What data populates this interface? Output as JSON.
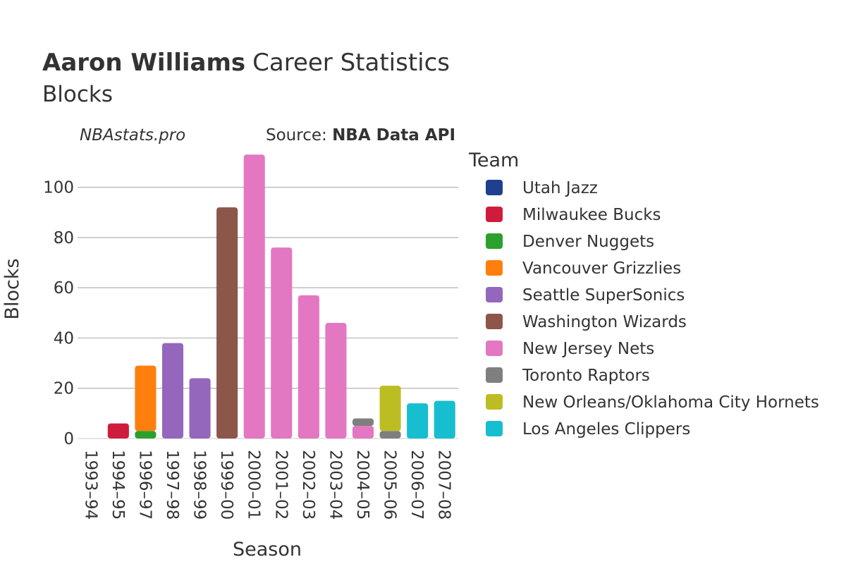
{
  "header": {
    "player": "Aaron Williams",
    "title_rest": "Career Statistics",
    "subtitle": "Blocks",
    "watermark": "NBAstats.pro",
    "source_prefix": "Source: ",
    "source_name": "NBA Data API"
  },
  "legend": {
    "title": "Team",
    "items": [
      {
        "team": "Utah Jazz",
        "color": "#1f3f8f"
      },
      {
        "team": "Milwaukee Bucks",
        "color": "#d01c3c"
      },
      {
        "team": "Denver Nuggets",
        "color": "#2ca02c"
      },
      {
        "team": "Vancouver Grizzlies",
        "color": "#ff7f0e"
      },
      {
        "team": "Seattle SuperSonics",
        "color": "#9467bd"
      },
      {
        "team": "Washington Wizards",
        "color": "#8c564b"
      },
      {
        "team": "New Jersey Nets",
        "color": "#e377c2"
      },
      {
        "team": "Toronto Raptors",
        "color": "#7f7f7f"
      },
      {
        "team": "New Orleans/Oklahoma City Hornets",
        "color": "#bcbd22"
      },
      {
        "team": "Los Angeles Clippers",
        "color": "#17becf"
      }
    ]
  },
  "chart_data": {
    "type": "bar",
    "stacked": true,
    "title": "Aaron Williams Career Statistics Blocks",
    "xlabel": "Season",
    "ylabel": "Blocks",
    "ylim": [
      0,
      117
    ],
    "yticks": [
      0,
      20,
      40,
      60,
      80,
      100
    ],
    "grid": true,
    "legend_position": "right",
    "categories": [
      "1993–94",
      "1994–95",
      "1996–97",
      "1997–98",
      "1998–99",
      "1999–00",
      "2000–01",
      "2001–02",
      "2002–03",
      "2003–04",
      "2004–05",
      "2005–06",
      "2006–07",
      "2007–08"
    ],
    "series": [
      {
        "name": "Utah Jazz",
        "values": [
          0,
          0,
          0,
          0,
          0,
          0,
          0,
          0,
          0,
          0,
          0,
          0,
          0,
          0
        ]
      },
      {
        "name": "Milwaukee Bucks",
        "values": [
          0,
          6,
          0,
          0,
          0,
          0,
          0,
          0,
          0,
          0,
          0,
          0,
          0,
          0
        ]
      },
      {
        "name": "Denver Nuggets",
        "values": [
          0,
          0,
          3,
          0,
          0,
          0,
          0,
          0,
          0,
          0,
          0,
          0,
          0,
          0
        ]
      },
      {
        "name": "Vancouver Grizzlies",
        "values": [
          0,
          0,
          26,
          0,
          0,
          0,
          0,
          0,
          0,
          0,
          0,
          0,
          0,
          0
        ]
      },
      {
        "name": "Seattle SuperSonics",
        "values": [
          0,
          0,
          0,
          38,
          24,
          0,
          0,
          0,
          0,
          0,
          0,
          0,
          0,
          0
        ]
      },
      {
        "name": "Washington Wizards",
        "values": [
          0,
          0,
          0,
          0,
          0,
          92,
          0,
          0,
          0,
          0,
          0,
          0,
          0,
          0
        ]
      },
      {
        "name": "New Jersey Nets",
        "values": [
          0,
          0,
          0,
          0,
          0,
          0,
          113,
          76,
          57,
          46,
          5,
          0,
          0,
          0
        ]
      },
      {
        "name": "Toronto Raptors",
        "values": [
          0,
          0,
          0,
          0,
          0,
          0,
          0,
          0,
          0,
          0,
          3,
          3,
          0,
          0
        ]
      },
      {
        "name": "New Orleans/Oklahoma City Hornets",
        "values": [
          0,
          0,
          0,
          0,
          0,
          0,
          0,
          0,
          0,
          0,
          0,
          18,
          0,
          0
        ]
      },
      {
        "name": "Los Angeles Clippers",
        "values": [
          0,
          0,
          0,
          0,
          0,
          0,
          0,
          0,
          0,
          0,
          0,
          0,
          14,
          15
        ]
      }
    ]
  }
}
